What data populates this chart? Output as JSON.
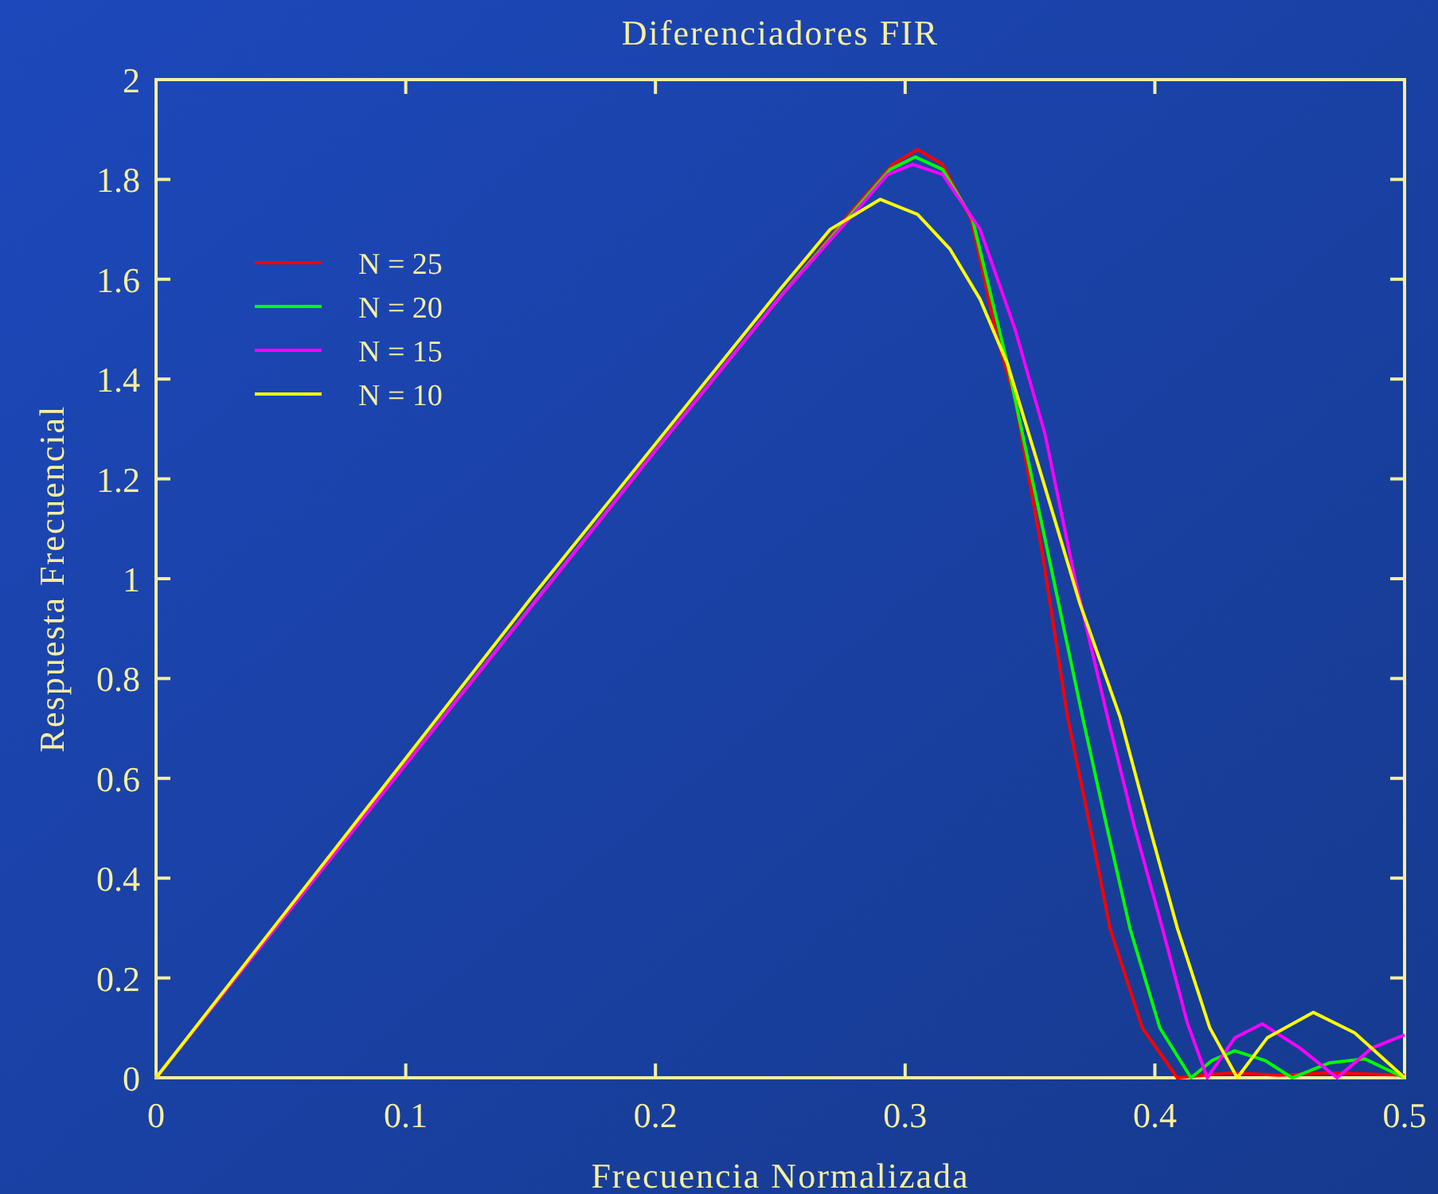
{
  "chart_data": {
    "type": "line",
    "title": "Diferenciadores FIR",
    "xlabel": "Frecuencia Normalizada",
    "ylabel": "Respuesta Frecuencial",
    "xlim": [
      0,
      0.5
    ],
    "xticks": [
      0,
      0.1,
      0.2,
      0.3,
      0.4,
      0.5
    ],
    "ylim": [
      0,
      2
    ],
    "yticks": [
      0,
      0.2,
      0.4,
      0.6,
      0.8,
      1,
      1.2,
      1.4,
      1.6,
      1.8,
      2
    ],
    "grid": false,
    "legend": "top left",
    "marker": "none",
    "line_style": "solid",
    "series": [
      {
        "name": "N = 25",
        "color": "#ff0000",
        "x": [
          0,
          0.2,
          0.25,
          0.28,
          0.295,
          0.305,
          0.315,
          0.3265,
          0.337,
          0.344,
          0.355,
          0.365,
          0.375,
          0.382,
          0.395,
          0.409,
          0.43,
          0.45,
          0.47,
          0.5
        ],
        "values": [
          0,
          1.257,
          1.565,
          1.745,
          1.83,
          1.86,
          1.83,
          1.72,
          1.48,
          1.36,
          1.05,
          0.724,
          0.48,
          0.3,
          0.1,
          0,
          0.01,
          0.005,
          0.01,
          0.005
        ]
      },
      {
        "name": "N = 20",
        "color": "#00ff00",
        "x": [
          0,
          0.2,
          0.25,
          0.28,
          0.294,
          0.304,
          0.315,
          0.327,
          0.341,
          0.356,
          0.371,
          0.38,
          0.39,
          0.402,
          0.4145,
          0.423,
          0.432,
          0.444,
          0.455,
          0.47,
          0.484,
          0.5
        ],
        "values": [
          0,
          1.257,
          1.565,
          1.74,
          1.82,
          1.845,
          1.82,
          1.72,
          1.43,
          1.08,
          0.724,
          0.52,
          0.3,
          0.1,
          0,
          0.035,
          0.054,
          0.035,
          0,
          0.03,
          0.038,
          0
        ]
      },
      {
        "name": "N = 15",
        "color": "#ff00ff",
        "x": [
          0,
          0.05,
          0.1,
          0.15,
          0.2,
          0.25,
          0.28,
          0.293,
          0.303,
          0.315,
          0.33,
          0.344,
          0.356,
          0.368,
          0.381,
          0.392,
          0.403,
          0.413,
          0.421,
          0.432,
          0.443,
          0.458,
          0.473,
          0.487,
          0.5
        ],
        "values": [
          0,
          0.314,
          0.628,
          0.942,
          1.257,
          1.565,
          1.735,
          1.81,
          1.83,
          1.81,
          1.7,
          1.5,
          1.29,
          1,
          0.724,
          0.5,
          0.3,
          0.11,
          0,
          0.08,
          0.108,
          0.06,
          0,
          0.06,
          0.086
        ]
      },
      {
        "name": "N = 10",
        "color": "#ffff00",
        "x": [
          0,
          0.05,
          0.1,
          0.15,
          0.2,
          0.25,
          0.27,
          0.29,
          0.305,
          0.318,
          0.33,
          0.341,
          0.355,
          0.37,
          0.386,
          0.398,
          0.409,
          0.422,
          0.433,
          0.445,
          0.4635,
          0.48,
          0.5
        ],
        "values": [
          0,
          0.32,
          0.64,
          0.96,
          1.27,
          1.58,
          1.7,
          1.76,
          1.73,
          1.66,
          1.56,
          1.43,
          1.2,
          0.95,
          0.724,
          0.5,
          0.3,
          0.1,
          0,
          0.08,
          0.131,
          0.09,
          0
        ]
      }
    ]
  }
}
